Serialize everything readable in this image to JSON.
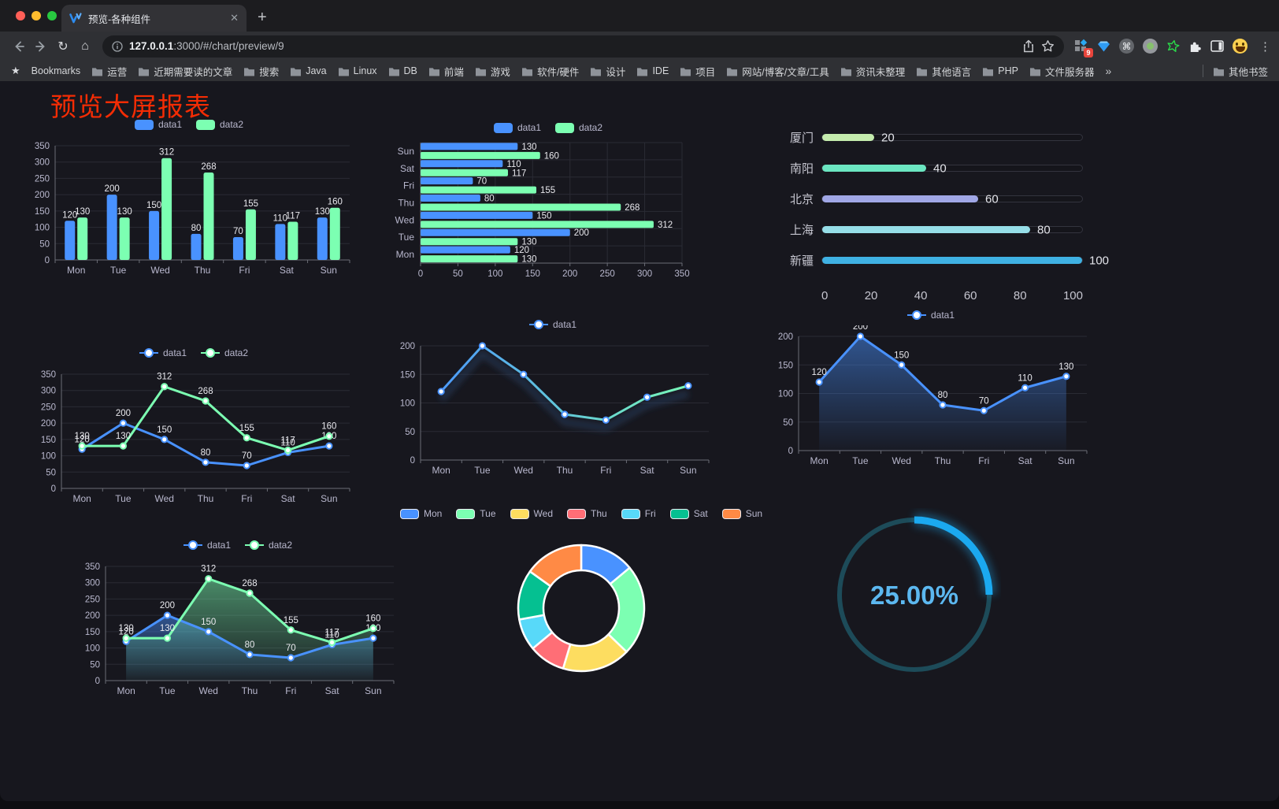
{
  "browser": {
    "tab": {
      "title": "预览-各种组件",
      "close_glyph": "✕",
      "new_tab_glyph": "+"
    },
    "address": {
      "host": "127.0.0.1",
      "rest": ":3000/#/chart/preview/9"
    },
    "toolbar_glyphs": {
      "back": "←",
      "forward": "→",
      "reload": "↻",
      "home": "⌂",
      "menu": "⋮",
      "command": "⌘"
    },
    "extensions": {
      "badge": "9"
    },
    "bookmarks_bar": {
      "star_glyph": "★",
      "label": "Bookmarks",
      "folders": [
        "运营",
        "近期需要读的文章",
        "搜索",
        "Java",
        "Linux",
        "DB",
        "前端",
        "游戏",
        "软件/硬件",
        "设计",
        "IDE",
        "项目",
        "网站/博客/文章/工具",
        "资讯未整理",
        "其他语言",
        "PHP",
        "文件服务器"
      ],
      "overflow_glyph": "»",
      "other_bookmarks": "其他书签"
    }
  },
  "page": {
    "title": "预览大屏报表",
    "title_color": "#f42c04",
    "background": "#17171e"
  },
  "chart_data": [
    {
      "type": "bar",
      "categories": [
        "Mon",
        "Tue",
        "Wed",
        "Thu",
        "Fri",
        "Sat",
        "Sun"
      ],
      "series": [
        {
          "name": "data1",
          "color": "#4992ff",
          "values": [
            120,
            200,
            150,
            80,
            70,
            110,
            130
          ]
        },
        {
          "name": "data2",
          "color": "#7cffb2",
          "values": [
            130,
            130,
            312,
            268,
            155,
            117,
            160
          ]
        }
      ],
      "ylim": [
        0,
        350
      ],
      "ystep": 50,
      "legend": "rect",
      "grid": true,
      "labels": true
    },
    {
      "type": "hbar",
      "categories": [
        "Mon",
        "Tue",
        "Wed",
        "Thu",
        "Fri",
        "Sat",
        "Sun"
      ],
      "series": [
        {
          "name": "data1",
          "color": "#4992ff",
          "values": [
            120,
            200,
            150,
            80,
            70,
            110,
            130
          ]
        },
        {
          "name": "data2",
          "color": "#7cffb2",
          "values": [
            130,
            130,
            312,
            268,
            155,
            117,
            160
          ]
        }
      ],
      "xlim": [
        0,
        350
      ],
      "xstep": 50,
      "legend": "rect",
      "grid": true,
      "labels": true
    },
    {
      "type": "progress",
      "rows": [
        {
          "label": "厦门",
          "value": 20,
          "color": "#c4ebad"
        },
        {
          "label": "南阳",
          "value": 40,
          "color": "#6be6c1"
        },
        {
          "label": "北京",
          "value": 60,
          "color": "#a0a7e6"
        },
        {
          "label": "上海",
          "value": 80,
          "color": "#96dee8"
        },
        {
          "label": "新疆",
          "value": 100,
          "color": "#3fb1e3"
        }
      ],
      "xlim": [
        0,
        100
      ],
      "xticks": [
        0,
        20,
        40,
        60,
        80,
        100
      ]
    },
    {
      "type": "line",
      "categories": [
        "Mon",
        "Tue",
        "Wed",
        "Thu",
        "Fri",
        "Sat",
        "Sun"
      ],
      "series": [
        {
          "name": "data1",
          "color": "#4992ff",
          "values": [
            120,
            200,
            150,
            80,
            70,
            110,
            130
          ]
        },
        {
          "name": "data2",
          "color": "#7cffb2",
          "values": [
            130,
            130,
            312,
            268,
            155,
            117,
            160
          ]
        }
      ],
      "ylim": [
        0,
        350
      ],
      "ystep": 50,
      "legend": "line",
      "labels": true
    },
    {
      "type": "line",
      "categories": [
        "Mon",
        "Tue",
        "Wed",
        "Thu",
        "Fri",
        "Sat",
        "Sun"
      ],
      "series": [
        {
          "name": "data1",
          "color": "#4992ff",
          "gradient": [
            "#4992ff",
            "#7cffb2"
          ],
          "values": [
            120,
            200,
            150,
            80,
            70,
            110,
            130
          ]
        }
      ],
      "ylim": [
        0,
        200
      ],
      "ystep": 50,
      "legend": "line",
      "labels": false,
      "shadow": true
    },
    {
      "type": "line",
      "categories": [
        "Mon",
        "Tue",
        "Wed",
        "Thu",
        "Fri",
        "Sat",
        "Sun"
      ],
      "series": [
        {
          "name": "data1",
          "color": "#4992ff",
          "area": true,
          "values": [
            120,
            200,
            150,
            80,
            70,
            110,
            130
          ]
        }
      ],
      "ylim": [
        0,
        200
      ],
      "ystep": 50,
      "legend": "line",
      "labels": true
    },
    {
      "type": "line",
      "categories": [
        "Mon",
        "Tue",
        "Wed",
        "Thu",
        "Fri",
        "Sat",
        "Sun"
      ],
      "series": [
        {
          "name": "data1",
          "color": "#4992ff",
          "area": true,
          "values": [
            120,
            200,
            150,
            80,
            70,
            110,
            130
          ]
        },
        {
          "name": "data2",
          "color": "#7cffb2",
          "area": true,
          "values": [
            130,
            130,
            312,
            268,
            155,
            117,
            160
          ]
        }
      ],
      "ylim": [
        0,
        350
      ],
      "ystep": 50,
      "legend": "line",
      "labels": true
    },
    {
      "type": "donut",
      "categories": [
        "Mon",
        "Tue",
        "Wed",
        "Thu",
        "Fri",
        "Sat",
        "Sun"
      ],
      "values": [
        120,
        200,
        150,
        80,
        70,
        110,
        130
      ],
      "colors": [
        "#4992ff",
        "#7cffb2",
        "#fddd60",
        "#ff6e76",
        "#58d9f9",
        "#05c091",
        "#ff8a45"
      ],
      "legend": "rect-bordered"
    },
    {
      "type": "gauge",
      "value": 25,
      "label": "25.00%",
      "arc_color": "#1ba9f0",
      "track_color": "#1d4b59",
      "text_color": "#5cb8f0"
    }
  ]
}
